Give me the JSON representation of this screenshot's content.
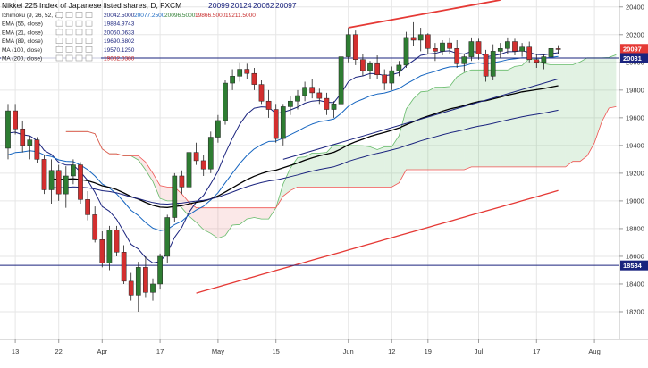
{
  "chart_data": {
    "type": "candlestick",
    "title": "Nikkei 225 Index of Japanese listed shares, D, FXCM",
    "ohlc_label": [
      "20099",
      "20124",
      "20062",
      "20097"
    ],
    "ylim": [
      18000,
      20450
    ],
    "y_ticks": [
      "20400",
      "20200",
      "20000",
      "19800",
      "19600",
      "19400",
      "19200",
      "19000",
      "18800",
      "18600",
      "18400",
      "18200"
    ],
    "x_ticks": [
      {
        "label": "13",
        "index": 1
      },
      {
        "label": "22",
        "index": 7
      },
      {
        "label": "Apr",
        "index": 13
      },
      {
        "label": "17",
        "index": 21
      },
      {
        "label": "May",
        "index": 29
      },
      {
        "label": "15",
        "index": 37
      },
      {
        "label": "Jun",
        "index": 47
      },
      {
        "label": "12",
        "index": 53
      },
      {
        "label": "19",
        "index": 58
      },
      {
        "label": "Jul",
        "index": 65
      },
      {
        "label": "17",
        "index": 73
      },
      {
        "label": "Aug",
        "index": 81
      }
    ],
    "indicators": [
      {
        "label": "Ichimoku (9, 26, 52, 26)",
        "values": [
          "20042.5000",
          "20077.2500",
          "20096.5000",
          "19866.5000",
          "19211.5000"
        ],
        "colors": [
          "#1a237e",
          "#1565c0",
          "#2e7d32",
          "#c62828",
          "#c62828"
        ]
      },
      {
        "label": "EMA (55, close)",
        "values": [
          "19884.9743"
        ],
        "colors": [
          "#1a237e"
        ]
      },
      {
        "label": "EMA (21, close)",
        "values": [
          "20050.0633"
        ],
        "colors": [
          "#1a237e"
        ]
      },
      {
        "label": "EMA (89, close)",
        "values": [
          "19690.6802"
        ],
        "colors": [
          "#1a237e"
        ]
      },
      {
        "label": "MA (100, close)",
        "values": [
          "19570.1250"
        ],
        "colors": [
          "#1a237e"
        ]
      },
      {
        "label": "MA (200, close)",
        "values": [
          "19082.0380"
        ],
        "colors": [
          "#c62828"
        ]
      }
    ],
    "price_badges": [
      {
        "label": "20097",
        "value": 20097,
        "color": "#e53935"
      },
      {
        "label": "20031",
        "value": 20031,
        "color": "#1a237e"
      },
      {
        "label": "18534",
        "value": 18534,
        "color": "#1a237e"
      }
    ],
    "horizontal_lines": [
      {
        "value": 20031,
        "color": "#1a237e"
      },
      {
        "value": 18534,
        "color": "#1a237e"
      }
    ],
    "candles": [
      [
        19380,
        19700,
        19300,
        19650
      ],
      [
        19650,
        19700,
        19480,
        19520
      ],
      [
        19520,
        19580,
        19350,
        19400
      ],
      [
        19400,
        19470,
        19300,
        19440
      ],
      [
        19440,
        19460,
        19270,
        19300
      ],
      [
        19300,
        19330,
        19050,
        19080
      ],
      [
        19080,
        19300,
        18980,
        19220
      ],
      [
        19220,
        19260,
        19000,
        19050
      ],
      [
        19050,
        19250,
        18950,
        19180
      ],
      [
        19180,
        19300,
        19120,
        19260
      ],
      [
        19260,
        19280,
        18980,
        19010
      ],
      [
        19010,
        19070,
        18860,
        18900
      ],
      [
        18900,
        18960,
        18700,
        18720
      ],
      [
        18720,
        18780,
        18520,
        18550
      ],
      [
        18550,
        18820,
        18500,
        18790
      ],
      [
        18790,
        18820,
        18600,
        18630
      ],
      [
        18630,
        18680,
        18400,
        18420
      ],
      [
        18420,
        18480,
        18280,
        18320
      ],
      [
        18320,
        18560,
        18200,
        18520
      ],
      [
        18520,
        18600,
        18300,
        18340
      ],
      [
        18340,
        18440,
        18280,
        18400
      ],
      [
        18400,
        18620,
        18360,
        18600
      ],
      [
        18600,
        18900,
        18550,
        18880
      ],
      [
        18880,
        19200,
        18850,
        19180
      ],
      [
        19180,
        19220,
        19050,
        19100
      ],
      [
        19100,
        19380,
        19070,
        19350
      ],
      [
        19350,
        19420,
        19260,
        19290
      ],
      [
        19290,
        19330,
        19180,
        19230
      ],
      [
        19230,
        19500,
        19200,
        19460
      ],
      [
        19460,
        19620,
        19420,
        19580
      ],
      [
        19580,
        19870,
        19550,
        19850
      ],
      [
        19850,
        19950,
        19800,
        19900
      ],
      [
        19900,
        20000,
        19860,
        19950
      ],
      [
        19950,
        19990,
        19880,
        19920
      ],
      [
        19920,
        19960,
        19800,
        19840
      ],
      [
        19840,
        19870,
        19700,
        19720
      ],
      [
        19720,
        19800,
        19600,
        19660
      ],
      [
        19660,
        19700,
        19420,
        19450
      ],
      [
        19450,
        19700,
        19400,
        19680
      ],
      [
        19680,
        19760,
        19620,
        19720
      ],
      [
        19720,
        19800,
        19660,
        19760
      ],
      [
        19760,
        19860,
        19720,
        19820
      ],
      [
        19820,
        19880,
        19740,
        19780
      ],
      [
        19780,
        19810,
        19700,
        19740
      ],
      [
        19740,
        19780,
        19620,
        19660
      ],
      [
        19660,
        19720,
        19600,
        19700
      ],
      [
        19700,
        20060,
        19680,
        20040
      ],
      [
        20040,
        20250,
        20000,
        20200
      ],
      [
        20200,
        20230,
        19980,
        20020
      ],
      [
        20020,
        20060,
        19900,
        19940
      ],
      [
        19940,
        20010,
        19880,
        19990
      ],
      [
        19990,
        20050,
        19880,
        19910
      ],
      [
        19910,
        19950,
        19800,
        19850
      ],
      [
        19850,
        19970,
        19800,
        19940
      ],
      [
        19940,
        20010,
        19900,
        19980
      ],
      [
        19980,
        20220,
        19960,
        20180
      ],
      [
        20180,
        20290,
        20120,
        20160
      ],
      [
        20160,
        20250,
        20080,
        20200
      ],
      [
        20200,
        20210,
        20060,
        20100
      ],
      [
        20100,
        20140,
        20010,
        20080
      ],
      [
        20080,
        20160,
        20050,
        20140
      ],
      [
        20140,
        20180,
        20060,
        20100
      ],
      [
        20100,
        20160,
        19960,
        19990
      ],
      [
        19990,
        20060,
        19930,
        20040
      ],
      [
        20040,
        20180,
        20010,
        20150
      ],
      [
        20150,
        20170,
        20020,
        20060
      ],
      [
        20060,
        20090,
        19860,
        19900
      ],
      [
        19900,
        20130,
        19870,
        20080
      ],
      [
        20080,
        20140,
        20030,
        20100
      ],
      [
        20100,
        20180,
        20060,
        20150
      ],
      [
        20150,
        20170,
        20050,
        20080
      ],
      [
        20080,
        20140,
        20040,
        20110
      ],
      [
        20110,
        20150,
        20000,
        20020
      ],
      [
        20020,
        20060,
        19960,
        20000
      ],
      [
        20000,
        20060,
        19950,
        20040
      ],
      [
        20040,
        20140,
        20010,
        20100
      ],
      [
        20099,
        20124,
        20062,
        20097
      ]
    ]
  }
}
